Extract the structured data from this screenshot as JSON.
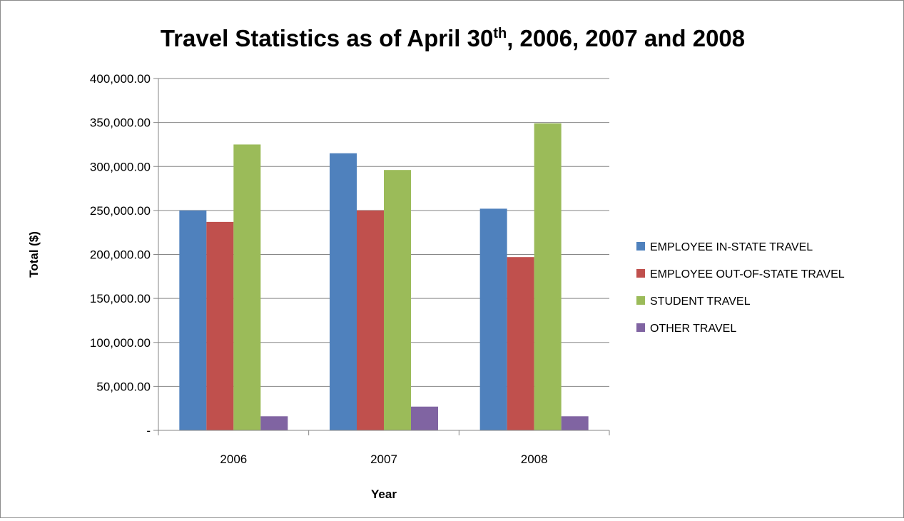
{
  "chart_data": {
    "type": "bar",
    "title": {
      "prefix": "Travel Statistics as of April 30",
      "superscript": "th",
      "suffix": ", 2006, 2007 and 2008"
    },
    "xlabel": "Year",
    "ylabel": "Total ($)",
    "ylim": [
      0,
      400000
    ],
    "yticks": [
      0,
      50000,
      100000,
      150000,
      200000,
      250000,
      300000,
      350000,
      400000
    ],
    "ytick_labels": [
      "-",
      "50,000.00",
      "100,000.00",
      "150,000.00",
      "200,000.00",
      "250,000.00",
      "300,000.00",
      "350,000.00",
      "400,000.00"
    ],
    "categories": [
      "2006",
      "2007",
      "2008"
    ],
    "series": [
      {
        "name": "EMPLOYEE IN-STATE TRAVEL",
        "color": "#4f81bd",
        "values": [
          250000,
          315000,
          252000
        ]
      },
      {
        "name": "EMPLOYEE OUT-OF-STATE TRAVEL",
        "color": "#c0504d",
        "values": [
          237000,
          250000,
          197000
        ]
      },
      {
        "name": "STUDENT TRAVEL",
        "color": "#9bbb59",
        "values": [
          325000,
          296000,
          349000
        ]
      },
      {
        "name": "OTHER TRAVEL",
        "color": "#8064a2",
        "values": [
          16000,
          27000,
          16000
        ]
      }
    ],
    "grid": true,
    "legend_position": "right"
  }
}
